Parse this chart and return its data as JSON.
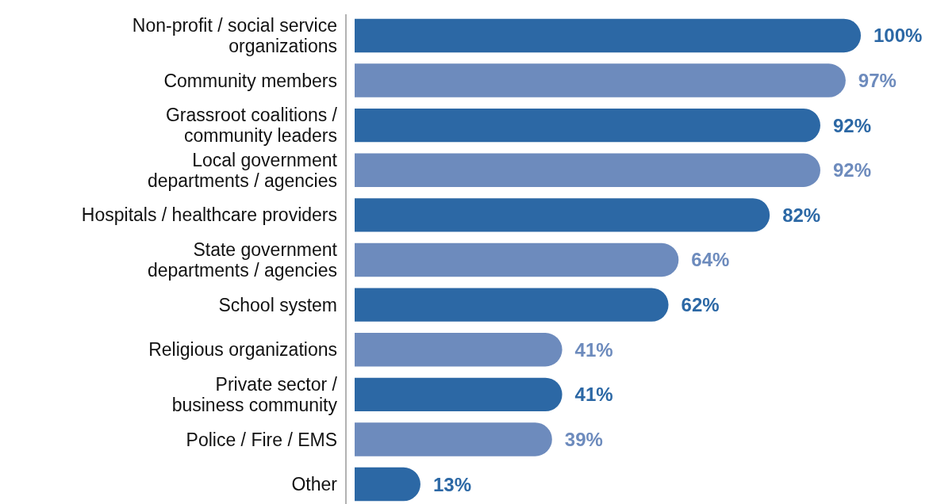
{
  "chart_data": {
    "type": "bar",
    "orientation": "horizontal",
    "categories": [
      "Non-profit / social service\norganizations",
      "Community members",
      "Grassroot coalitions /\ncommunity leaders",
      "Local government\ndepartments / agencies",
      "Hospitals / healthcare providers",
      "State government\ndepartments / agencies",
      "School system",
      "Religious organizations",
      "Private sector /\nbusiness community",
      "Police / Fire / EMS",
      "Other"
    ],
    "values": [
      100,
      97,
      92,
      92,
      82,
      64,
      62,
      41,
      41,
      39,
      13
    ],
    "value_labels": [
      "100%",
      "97%",
      "92%",
      "92%",
      "82%",
      "64%",
      "62%",
      "41%",
      "41%",
      "39%",
      "13%"
    ],
    "colors": [
      "#2c68a5",
      "#6d8bbd",
      "#2c68a5",
      "#6d8bbd",
      "#2c68a5",
      "#6d8bbd",
      "#2c68a5",
      "#6d8bbd",
      "#2c68a5",
      "#6d8bbd",
      "#2c68a5"
    ]
  }
}
